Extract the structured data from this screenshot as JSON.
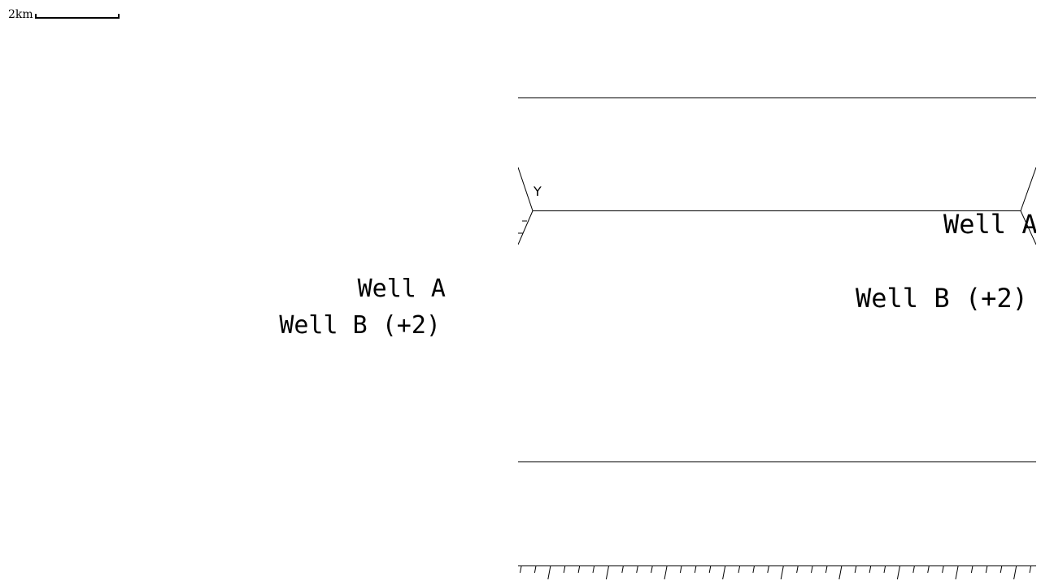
{
  "scale_bar": {
    "label": "2km"
  },
  "left_view": {
    "well_a_label": "Well A",
    "well_b_label": "Well B (+2)"
  },
  "right_view": {
    "axis_label": "Y",
    "well_a_label": "Well A",
    "well_b_label": "Well B (+2)"
  },
  "colors": {
    "background": "#ffffff",
    "ink": "#000000"
  }
}
